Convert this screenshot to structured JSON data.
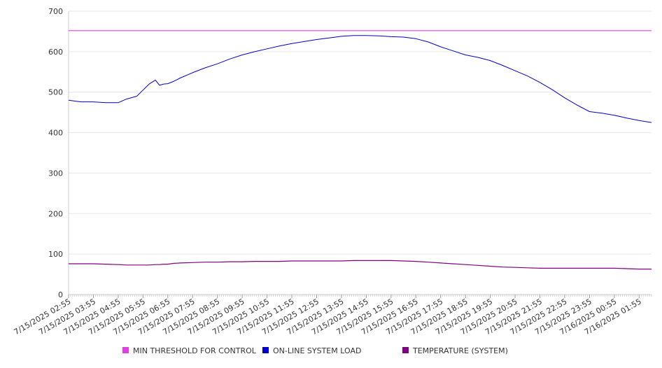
{
  "chart_data": {
    "type": "line",
    "title": "",
    "xlabel": "",
    "ylabel": "",
    "ylim": [
      0,
      700
    ],
    "yticks": [
      0,
      100,
      200,
      300,
      400,
      500,
      600,
      700
    ],
    "grid": true,
    "legend_position": "bottom",
    "x_tick_labels": [
      "7/15/2025 02:55",
      "7/15/2025 03:55",
      "7/15/2025 04:55",
      "7/15/2025 05:55",
      "7/15/2025 06:55",
      "7/15/2025 07:55",
      "7/15/2025 08:55",
      "7/15/2025 09:55",
      "7/15/2025 10:55",
      "7/15/2025 11:55",
      "7/15/2025 12:55",
      "7/15/2025 13:55",
      "7/15/2025 14:55",
      "7/15/2025 15:55",
      "7/15/2025 16:55",
      "7/15/2025 17:55",
      "7/15/2025 18:55",
      "7/15/2025 19:55",
      "7/15/2025 20:55",
      "7/15/2025 21:55",
      "7/15/2025 22:55",
      "7/15/2025 23:55",
      "7/16/2025 00:55",
      "7/16/2025 01:55"
    ],
    "x": [
      "7/15/2025 02:55",
      "7/15/2025 03:25",
      "7/15/2025 03:55",
      "7/15/2025 04:25",
      "7/15/2025 04:55",
      "7/15/2025 05:15",
      "7/15/2025 05:40",
      "7/15/2025 05:55",
      "7/15/2025 06:10",
      "7/15/2025 06:25",
      "7/15/2025 06:35",
      "7/15/2025 06:45",
      "7/15/2025 06:55",
      "7/15/2025 07:10",
      "7/15/2025 07:25",
      "7/15/2025 07:55",
      "7/15/2025 08:25",
      "7/15/2025 08:55",
      "7/15/2025 09:25",
      "7/15/2025 09:55",
      "7/15/2025 10:25",
      "7/15/2025 10:55",
      "7/15/2025 11:25",
      "7/15/2025 11:55",
      "7/15/2025 12:25",
      "7/15/2025 12:55",
      "7/15/2025 13:25",
      "7/15/2025 13:55",
      "7/15/2025 14:25",
      "7/15/2025 14:55",
      "7/15/2025 15:25",
      "7/15/2025 15:55",
      "7/15/2025 16:25",
      "7/15/2025 16:55",
      "7/15/2025 17:25",
      "7/15/2025 17:55",
      "7/15/2025 18:25",
      "7/15/2025 18:55",
      "7/15/2025 19:25",
      "7/15/2025 19:55",
      "7/15/2025 20:25",
      "7/15/2025 20:55",
      "7/15/2025 21:25",
      "7/15/2025 21:55",
      "7/15/2025 22:25",
      "7/15/2025 22:55",
      "7/15/2025 23:25",
      "7/15/2025 23:55",
      "7/16/2025 00:25",
      "7/16/2025 00:55",
      "7/16/2025 01:25",
      "7/16/2025 01:55",
      "7/16/2025 02:25"
    ],
    "series": [
      {
        "name": "MIN THRESHOLD FOR CONTROL",
        "color": "#e040e0",
        "values": [
          652,
          652,
          652,
          652,
          652,
          652,
          652,
          652,
          652,
          652,
          652,
          652,
          652,
          652,
          652,
          652,
          652,
          652,
          652,
          652,
          652,
          652,
          652,
          652,
          652,
          652,
          652,
          652,
          652,
          652,
          652,
          652,
          652,
          652,
          652,
          652,
          652,
          652,
          652,
          652,
          652,
          652,
          652,
          652,
          652,
          652,
          652,
          652,
          652,
          652,
          652,
          652,
          652
        ]
      },
      {
        "name": "ON-LINE SYSTEM LOAD",
        "color": "#0000cc",
        "values": [
          480,
          476,
          476,
          474,
          474,
          483,
          490,
          505,
          520,
          530,
          517,
          520,
          521,
          527,
          535,
          548,
          560,
          570,
          582,
          592,
          600,
          607,
          614,
          620,
          625,
          630,
          634,
          638,
          640,
          640,
          639,
          637,
          636,
          632,
          624,
          612,
          602,
          592,
          586,
          578,
          566,
          553,
          540,
          524,
          506,
          486,
          468,
          452,
          448,
          443,
          436,
          430,
          425
        ]
      },
      {
        "name": "TEMPERATURE (SYSTEM)",
        "color": "#800080",
        "values": [
          76,
          76,
          76,
          75,
          74,
          73,
          73,
          73,
          73,
          74,
          74,
          75,
          75,
          77,
          78,
          79,
          80,
          80,
          81,
          81,
          82,
          82,
          82,
          83,
          83,
          83,
          83,
          83,
          84,
          84,
          84,
          84,
          83,
          82,
          80,
          78,
          76,
          74,
          72,
          70,
          68,
          67,
          66,
          65,
          65,
          65,
          65,
          65,
          65,
          65,
          64,
          63,
          63
        ]
      }
    ]
  }
}
